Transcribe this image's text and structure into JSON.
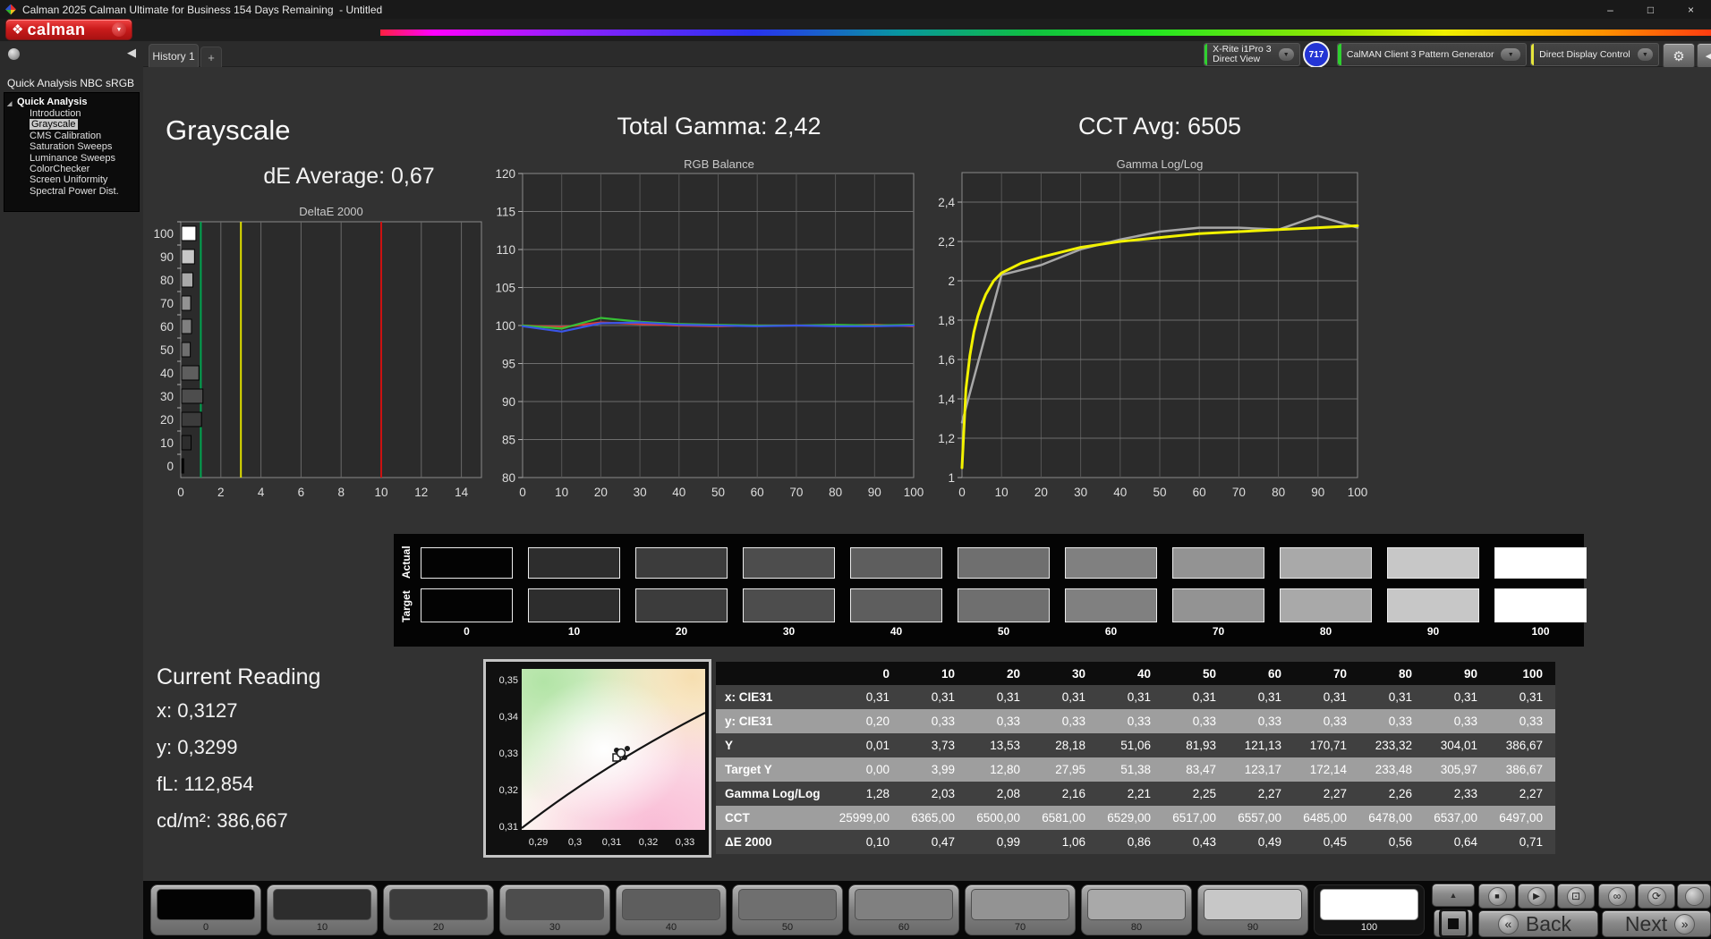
{
  "window": {
    "title": "Calman 2025 Calman Ultimate for Business 154 Days Remaining  - Untitled",
    "minimize": "–",
    "maximize": "□",
    "close": "×"
  },
  "icons": {
    "logo_diamond": "❖",
    "dropdown_arrow": "▼",
    "collapse_left": "◀",
    "gear": "⚙",
    "expander": "◢",
    "up_arrow": "▲",
    "stop": "■",
    "play": "▶",
    "single_pattern": "⊡",
    "continuous": "∞",
    "repeat": "⟳",
    "back_chevron": "«",
    "next_chevron": "»"
  },
  "logo": {
    "label": "calman"
  },
  "tab_bar": {
    "history_tab": "History 1",
    "add_tab": "+"
  },
  "toolbar": {
    "meter": {
      "line1": "X-Rite i1Pro 3",
      "line2": "Direct View",
      "accent": "#2fd02f",
      "badge": "717",
      "badge_color": "#2334d4"
    },
    "pattern_generator": {
      "label": "CalMAN Client 3 Pattern Generator",
      "accent": "#2fd02f"
    },
    "display_control": {
      "label": "Direct Display Control",
      "accent": "#e6e63c"
    }
  },
  "sidebar": {
    "title": "Quick Analysis NBC sRGB",
    "root": "Quick Analysis",
    "selected": "Grayscale",
    "items": [
      "Introduction",
      "Grayscale",
      "CMS Calibration",
      "Saturation Sweeps",
      "Luminance Sweeps",
      "ColorChecker",
      "Screen Uniformity",
      "Spectral Power Dist."
    ]
  },
  "grayscale_section": {
    "title": "Grayscale",
    "de_average": "dE Average: 0,67"
  },
  "gamma_section": {
    "title": "Total Gamma: 2,42"
  },
  "cct_section": {
    "title": "CCT Avg: 6505"
  },
  "chart_data": [
    {
      "type": "bar",
      "title": "DeltaE 2000",
      "orientation": "horizontal",
      "categories": [
        100,
        90,
        80,
        70,
        60,
        50,
        40,
        30,
        20,
        10,
        0
      ],
      "values": [
        0.71,
        0.64,
        0.56,
        0.45,
        0.49,
        0.43,
        0.86,
        1.06,
        0.99,
        0.47,
        0.1
      ],
      "xlim": [
        0,
        15
      ],
      "xticks": [
        0,
        2,
        4,
        6,
        8,
        10,
        12,
        14
      ],
      "ref_lines": [
        {
          "x": 1,
          "color": "#00a550"
        },
        {
          "x": 3,
          "color": "#dede00"
        },
        {
          "x": 10,
          "color": "#cc1111"
        }
      ],
      "bar_colors": [
        "#ffffff",
        "#c7c7c7",
        "#a9a9a9",
        "#939393",
        "#808080",
        "#6f6f6f",
        "#5e5e5e",
        "#4d4d4d",
        "#3c3c3c",
        "#2d2d2d",
        "#060606"
      ]
    },
    {
      "type": "line",
      "title": "RGB Balance",
      "x": [
        0,
        10,
        20,
        30,
        40,
        50,
        60,
        70,
        80,
        90,
        100
      ],
      "ylim": [
        80,
        120
      ],
      "yticks": [
        80,
        85,
        90,
        95,
        100,
        105,
        110,
        115,
        120
      ],
      "series": [
        {
          "name": "Red",
          "color": "#e03838",
          "values": [
            100,
            99.8,
            100.4,
            100.2,
            100,
            99.9,
            100,
            100,
            100,
            100.1,
            99.9
          ]
        },
        {
          "name": "Green",
          "color": "#35c035",
          "values": [
            100,
            99.6,
            101,
            100.5,
            100.2,
            100.1,
            100,
            100,
            100.1,
            100,
            100.1
          ]
        },
        {
          "name": "Blue",
          "color": "#3a55e8",
          "values": [
            99.9,
            99.2,
            100.3,
            100.4,
            100.1,
            100,
            99.9,
            100,
            99.9,
            99.9,
            100
          ]
        }
      ]
    },
    {
      "type": "line",
      "title": "Gamma Log/Log",
      "x": [
        0,
        10,
        20,
        30,
        40,
        50,
        60,
        70,
        80,
        90,
        100
      ],
      "ylim": [
        1,
        2.55
      ],
      "yticks": [
        1,
        1.2,
        1.4,
        1.6,
        1.8,
        2,
        2.2,
        2.4
      ],
      "ytick_labels": [
        "1",
        "1,2",
        "1,4",
        "1,6",
        "1,8",
        "2",
        "2,2",
        "2,4"
      ],
      "series": [
        {
          "name": "Measured",
          "color": "#a8a8a8",
          "width": 2.5,
          "points": [
            [
              0,
              1.28
            ],
            [
              10,
              2.03
            ],
            [
              20,
              2.08
            ],
            [
              30,
              2.16
            ],
            [
              40,
              2.21
            ],
            [
              50,
              2.25
            ],
            [
              60,
              2.27
            ],
            [
              70,
              2.27
            ],
            [
              80,
              2.26
            ],
            [
              90,
              2.33
            ],
            [
              100,
              2.27
            ]
          ]
        },
        {
          "name": "Target",
          "color": "#f2f200",
          "width": 3,
          "points": [
            [
              0,
              1.05
            ],
            [
              1,
              1.45
            ],
            [
              2,
              1.62
            ],
            [
              3,
              1.74
            ],
            [
              4,
              1.82
            ],
            [
              5,
              1.88
            ],
            [
              6,
              1.93
            ],
            [
              8,
              2.0
            ],
            [
              10,
              2.04
            ],
            [
              15,
              2.09
            ],
            [
              20,
              2.12
            ],
            [
              30,
              2.17
            ],
            [
              40,
              2.2
            ],
            [
              50,
              2.22
            ],
            [
              60,
              2.24
            ],
            [
              70,
              2.25
            ],
            [
              80,
              2.26
            ],
            [
              90,
              2.27
            ],
            [
              100,
              2.28
            ]
          ]
        }
      ]
    }
  ],
  "patch_strip": {
    "row_labels": [
      "Actual",
      "Target"
    ],
    "levels": [
      "0",
      "10",
      "20",
      "30",
      "40",
      "50",
      "60",
      "70",
      "80",
      "90",
      "100"
    ],
    "colors": [
      "#030303",
      "#2d2d2d",
      "#3c3c3c",
      "#4d4d4d",
      "#5e5e5e",
      "#6f6f6f",
      "#808080",
      "#939393",
      "#a9a9a9",
      "#c7c7c7",
      "#ffffff"
    ]
  },
  "current_reading": {
    "title": "Current Reading",
    "lines": [
      "x: 0,3127",
      "y: 0,3299",
      "fL: 112,854",
      "cd/m²: 386,667"
    ]
  },
  "cie_chart": {
    "yticks": [
      "0,35",
      "0,34",
      "0,33",
      "0,32",
      "0,31"
    ],
    "xticks": [
      "0,29",
      "0,3",
      "0,31",
      "0,32",
      "0,33"
    ]
  },
  "table": {
    "columns": [
      "0",
      "10",
      "20",
      "30",
      "40",
      "50",
      "60",
      "70",
      "80",
      "90",
      "100"
    ],
    "rows": [
      {
        "label": "x: CIE31",
        "values": [
          "0,31",
          "0,31",
          "0,31",
          "0,31",
          "0,31",
          "0,31",
          "0,31",
          "0,31",
          "0,31",
          "0,31",
          "0,31"
        ]
      },
      {
        "label": "y: CIE31",
        "values": [
          "0,20",
          "0,33",
          "0,33",
          "0,33",
          "0,33",
          "0,33",
          "0,33",
          "0,33",
          "0,33",
          "0,33",
          "0,33"
        ]
      },
      {
        "label": "Y",
        "values": [
          "0,01",
          "3,73",
          "13,53",
          "28,18",
          "51,06",
          "81,93",
          "121,13",
          "170,71",
          "233,32",
          "304,01",
          "386,67"
        ]
      },
      {
        "label": "Target Y",
        "values": [
          "0,00",
          "3,99",
          "12,80",
          "27,95",
          "51,38",
          "83,47",
          "123,17",
          "172,14",
          "233,48",
          "305,97",
          "386,67"
        ]
      },
      {
        "label": "Gamma Log/Log",
        "values": [
          "1,28",
          "2,03",
          "2,08",
          "2,16",
          "2,21",
          "2,25",
          "2,27",
          "2,27",
          "2,26",
          "2,33",
          "2,27"
        ]
      },
      {
        "label": "CCT",
        "values": [
          "25999,00",
          "6365,00",
          "6500,00",
          "6581,00",
          "6529,00",
          "6517,00",
          "6557,00",
          "6485,00",
          "6478,00",
          "6537,00",
          "6497,00"
        ]
      },
      {
        "label": "ΔE 2000",
        "values": [
          "0,10",
          "0,47",
          "0,99",
          "1,06",
          "0,86",
          "0,43",
          "0,49",
          "0,45",
          "0,56",
          "0,64",
          "0,71"
        ]
      }
    ]
  },
  "bottom_bar": {
    "levels": [
      "0",
      "10",
      "20",
      "30",
      "40",
      "50",
      "60",
      "70",
      "80",
      "90",
      "100"
    ],
    "selected": "100",
    "back_label": "Back",
    "next_label": "Next"
  }
}
